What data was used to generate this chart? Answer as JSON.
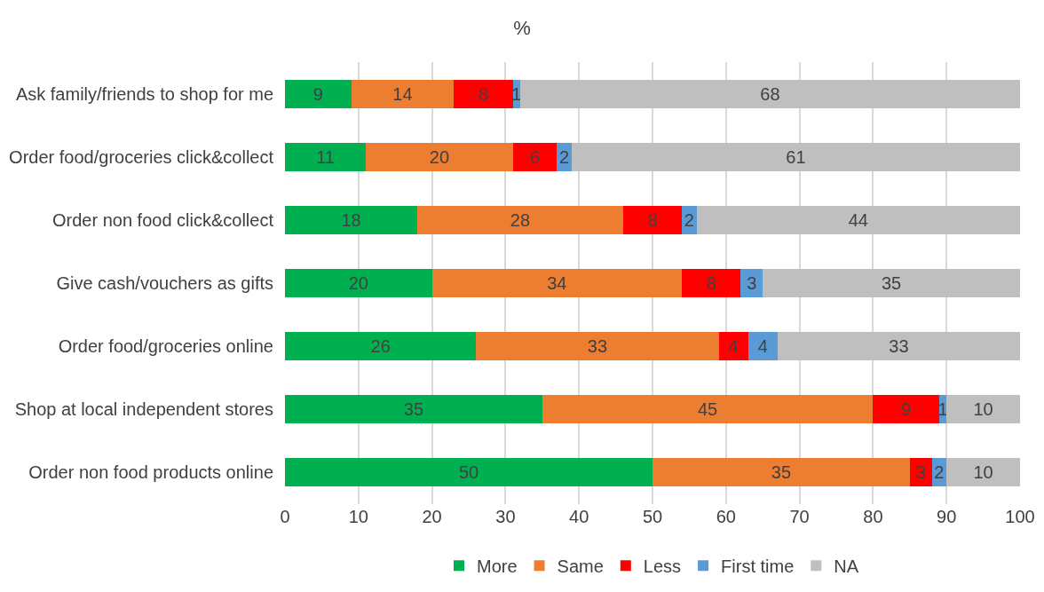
{
  "chart_data": {
    "type": "bar",
    "orientation": "horizontal",
    "stacked": true,
    "title": "%",
    "categories": [
      "Ask family/friends to shop for me",
      "Order food/groceries click&collect",
      "Order non food click&collect",
      "Give cash/vouchers as gifts",
      "Order food/groceries online",
      "Shop at local independent stores",
      "Order non food products online"
    ],
    "series": [
      {
        "name": "More",
        "color": "#00b050",
        "values": [
          9,
          11,
          18,
          20,
          26,
          35,
          50
        ]
      },
      {
        "name": "Same",
        "color": "#ed7d31",
        "values": [
          14,
          20,
          28,
          34,
          33,
          45,
          35
        ]
      },
      {
        "name": "Less",
        "color": "#ff0000",
        "values": [
          8,
          6,
          8,
          8,
          4,
          9,
          3
        ]
      },
      {
        "name": "First time",
        "color": "#5b9bd5",
        "values": [
          1,
          2,
          2,
          3,
          4,
          1,
          2
        ]
      },
      {
        "name": "NA",
        "color": "#bfbfbf",
        "values": [
          68,
          61,
          44,
          35,
          33,
          10,
          10
        ]
      }
    ],
    "xlim": [
      0,
      100
    ],
    "xticks": [
      0,
      10,
      20,
      30,
      40,
      50,
      60,
      70,
      80,
      90,
      100
    ],
    "grid": "x",
    "legend": "bottom",
    "data_labels": true
  }
}
